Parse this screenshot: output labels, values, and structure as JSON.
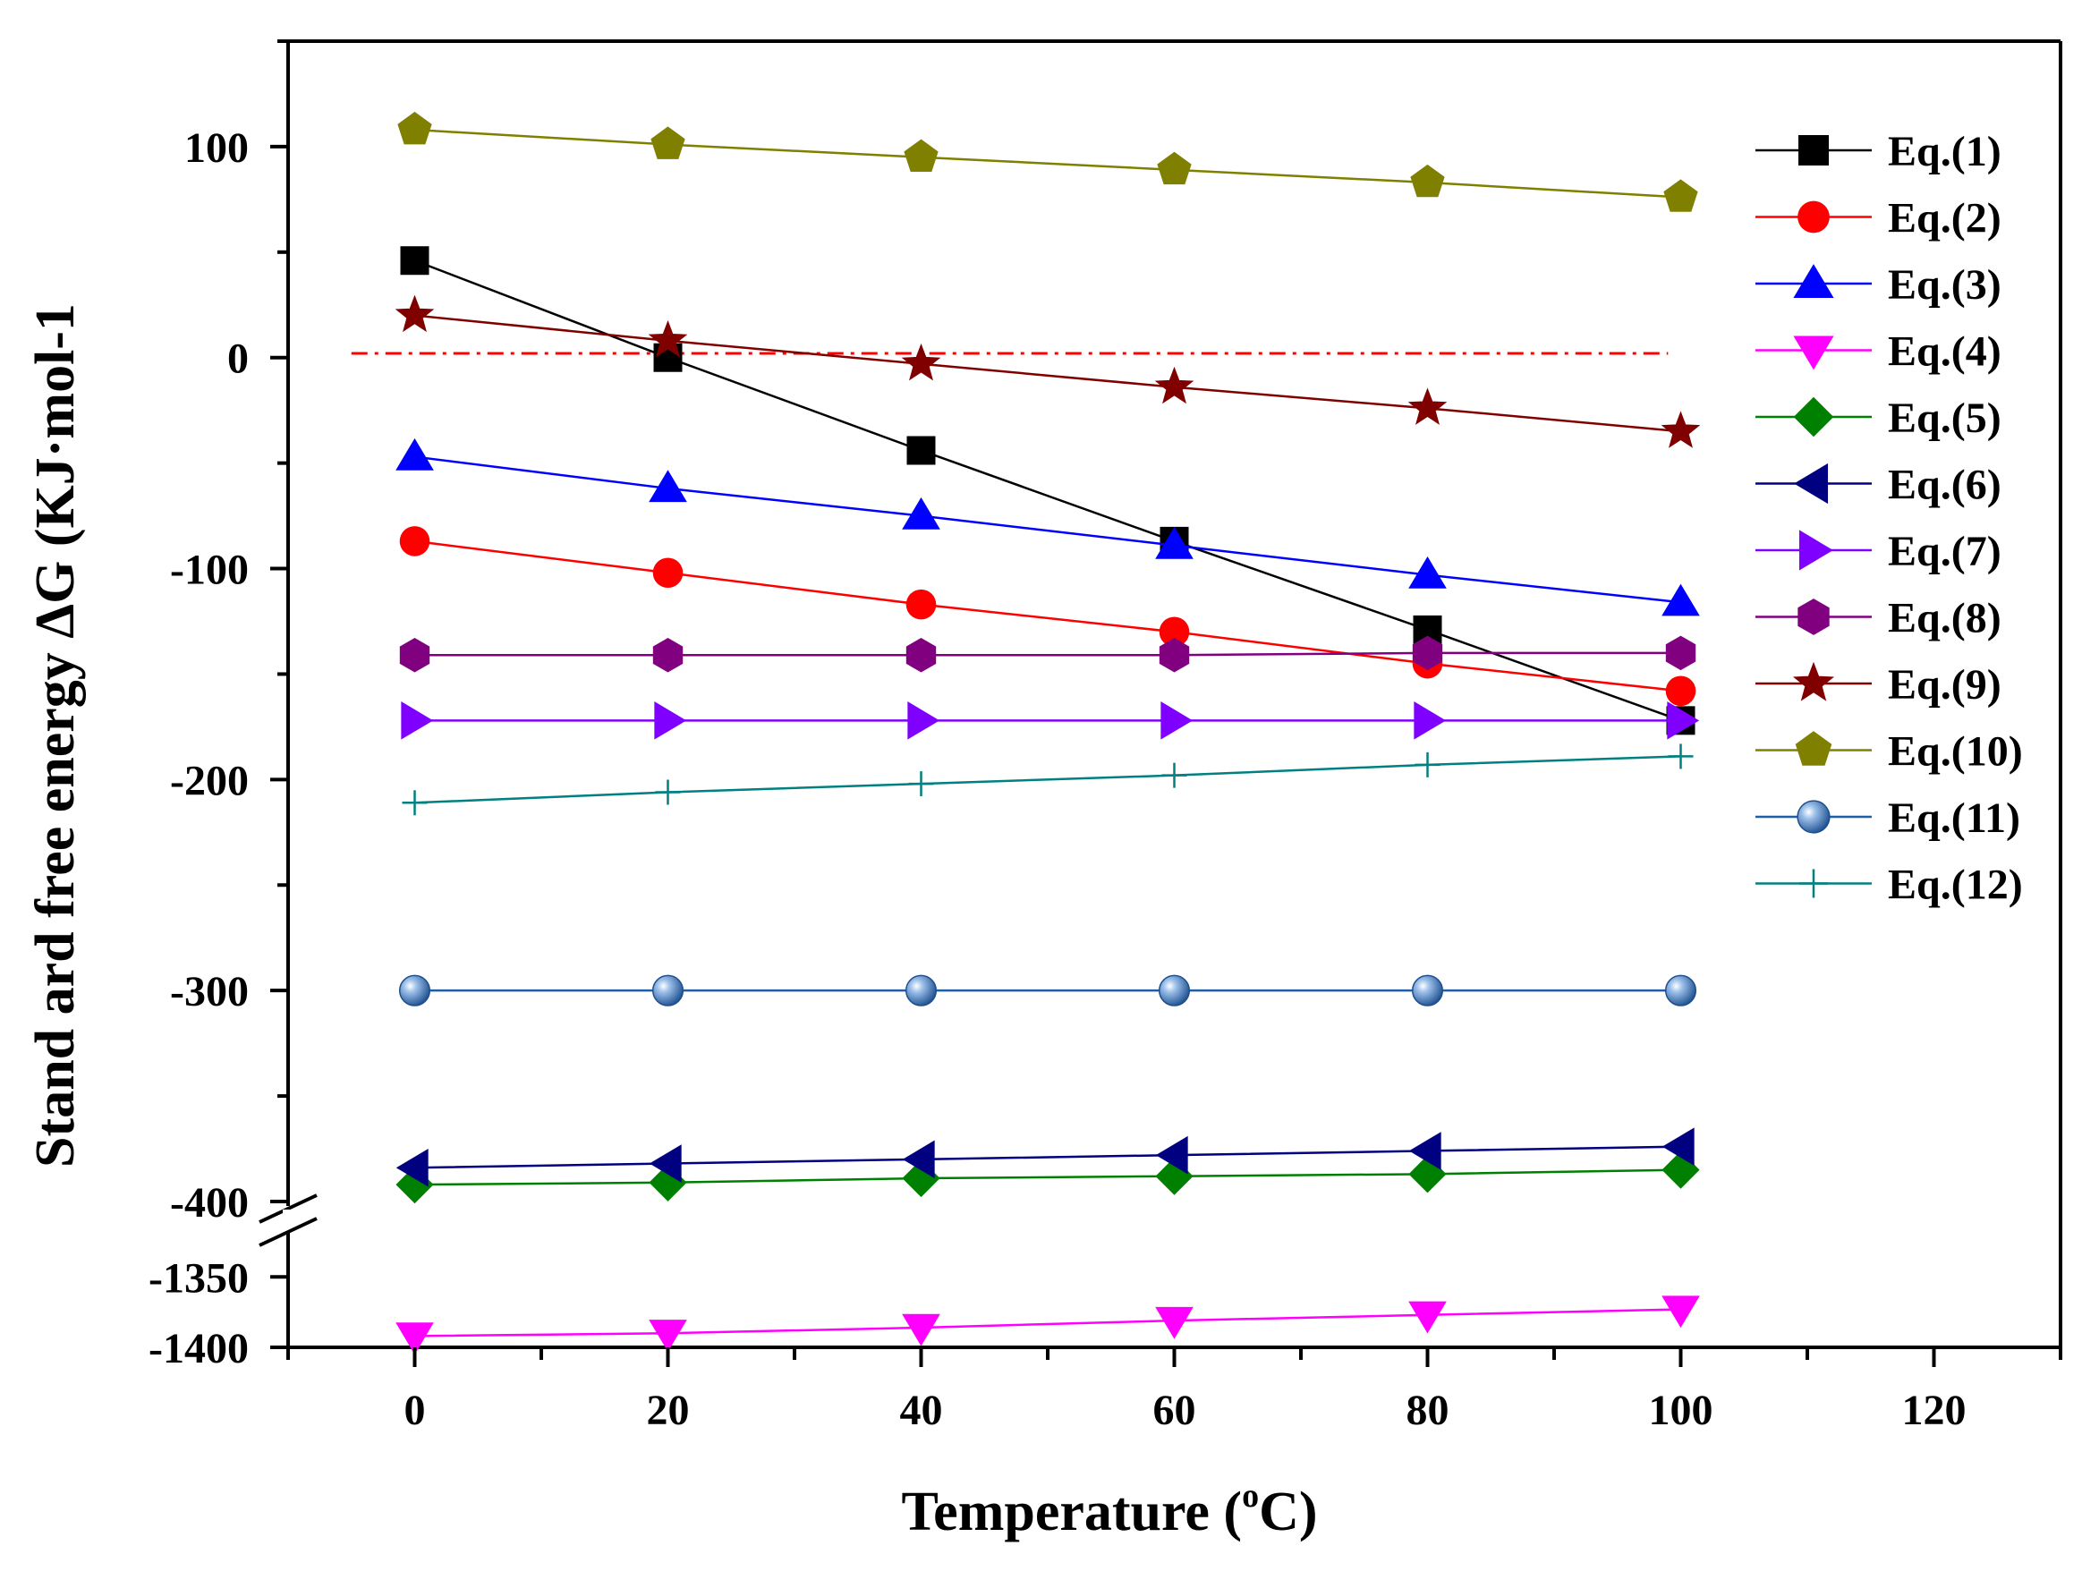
{
  "chart_data": {
    "type": "line",
    "title": "",
    "xlabel": "Temperature (",
    "xlabel_sup": "o",
    "xlabel_unit": "C)",
    "ylabel": "Stand ard free energy ΔG (KJ·mol-1",
    "xlim": [
      -10,
      130
    ],
    "ylim_upper": [
      -400,
      150
    ],
    "ylim_lower": [
      -1400,
      -1320
    ],
    "axis_break_between": [
      -1320,
      -400
    ],
    "x_ticks": [
      0,
      20,
      40,
      60,
      80,
      100,
      120
    ],
    "x_tick_labels": [
      "0",
      "20",
      "40",
      "60",
      "80",
      "100",
      "120"
    ],
    "y_ticks_upper": [
      100,
      0,
      -100,
      -200,
      -300,
      -400
    ],
    "y_tick_labels_upper": [
      "100",
      "0",
      "-100",
      "-200",
      "-300",
      "-400"
    ],
    "y_ticks_lower": [
      -1350,
      -1400
    ],
    "y_tick_labels_lower": [
      "-1350",
      "-1400"
    ],
    "reference_line": {
      "y": 2,
      "x_start": -5,
      "x_end": 99,
      "color": "#ff0000",
      "style": "dash-dot"
    },
    "legend_position": "top-right",
    "x": [
      0,
      20,
      40,
      60,
      80,
      100
    ],
    "series": [
      {
        "name": "Eq.(1)",
        "marker": "square",
        "color": "#000000",
        "marker_color": "#000000",
        "values": [
          46,
          0,
          -44,
          -87,
          -129,
          -172
        ]
      },
      {
        "name": "Eq.(2)",
        "marker": "circle",
        "color": "#ff0000",
        "marker_color": "#ff0000",
        "values": [
          -87,
          -102,
          -117,
          -130,
          -145,
          -158
        ]
      },
      {
        "name": "Eq.(3)",
        "marker": "triangle-up",
        "color": "#0000ff",
        "marker_color": "#0000ff",
        "values": [
          -47,
          -62,
          -75,
          -89,
          -103,
          -116
        ]
      },
      {
        "name": "Eq.(4)",
        "marker": "triangle-down",
        "color": "#ff00ff",
        "marker_color": "#ff00ff",
        "values": [
          -1392,
          -1390,
          -1386,
          -1381,
          -1377,
          -1373
        ]
      },
      {
        "name": "Eq.(5)",
        "marker": "diamond",
        "color": "#008000",
        "marker_color": "#008000",
        "values": [
          -392,
          -391,
          -389,
          -388,
          -387,
          -385
        ]
      },
      {
        "name": "Eq.(6)",
        "marker": "triangle-left",
        "color": "#000080",
        "marker_color": "#000080",
        "values": [
          -384,
          -382,
          -380,
          -378,
          -376,
          -374
        ]
      },
      {
        "name": "Eq.(7)",
        "marker": "triangle-right",
        "color": "#8000ff",
        "marker_color": "#8000ff",
        "values": [
          -172,
          -172,
          -172,
          -172,
          -172,
          -172
        ]
      },
      {
        "name": "Eq.(8)",
        "marker": "hexagon",
        "color": "#800080",
        "marker_color": "#800080",
        "values": [
          -141,
          -141,
          -141,
          -141,
          -140,
          -140
        ]
      },
      {
        "name": "Eq.(9)",
        "marker": "star",
        "color": "#800000",
        "marker_color": "#800000",
        "values": [
          20,
          8,
          -3,
          -14,
          -24,
          -35
        ]
      },
      {
        "name": "Eq.(10)",
        "marker": "pentagon",
        "color": "#808000",
        "marker_color": "#808000",
        "values": [
          108,
          101,
          95,
          89,
          83,
          76
        ]
      },
      {
        "name": "Eq.(11)",
        "marker": "sphere",
        "color": "#1f5fa8",
        "marker_color": "#3a78c2",
        "values": [
          -300,
          -300,
          -300,
          -300,
          -300,
          -300
        ]
      },
      {
        "name": "Eq.(12)",
        "marker": "plus",
        "color": "#008080",
        "marker_color": "#008080",
        "values": [
          -211,
          -206,
          -202,
          -198,
          -193,
          -189
        ]
      }
    ]
  }
}
